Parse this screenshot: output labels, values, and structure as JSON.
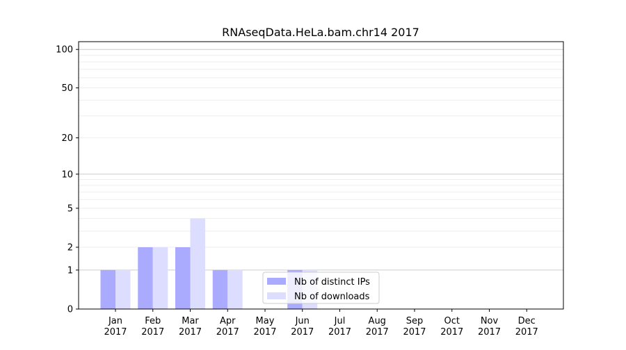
{
  "chart_data": {
    "type": "bar",
    "title": "RNAseqData.HeLa.bam.chr14 2017",
    "xlabel": "",
    "ylabel": "",
    "yscale": "log(1+y)",
    "ylim": [
      0,
      115
    ],
    "grid": "horizontal",
    "legend_position": "bottom-center",
    "categories": [
      [
        "Jan",
        "2017"
      ],
      [
        "Feb",
        "2017"
      ],
      [
        "Mar",
        "2017"
      ],
      [
        "Apr",
        "2017"
      ],
      [
        "May",
        "2017"
      ],
      [
        "Jun",
        "2017"
      ],
      [
        "Jul",
        "2017"
      ],
      [
        "Aug",
        "2017"
      ],
      [
        "Sep",
        "2017"
      ],
      [
        "Oct",
        "2017"
      ],
      [
        "Nov",
        "2017"
      ],
      [
        "Dec",
        "2017"
      ]
    ],
    "yticks": [
      0,
      1,
      2,
      5,
      10,
      20,
      50,
      100
    ],
    "yticks_minor": [
      3,
      4,
      6,
      7,
      8,
      9,
      30,
      40,
      60,
      70,
      80,
      90
    ],
    "series": [
      {
        "name": "Nb of distinct IPs",
        "color": "#aaaaff",
        "values": [
          1,
          2,
          2,
          1,
          0,
          1,
          0,
          0,
          0,
          0,
          0,
          0
        ]
      },
      {
        "name": "Nb of downloads",
        "color": "#ddddff",
        "values": [
          1,
          2,
          4,
          1,
          0,
          1,
          0,
          0,
          0,
          0,
          0,
          0
        ]
      }
    ]
  }
}
